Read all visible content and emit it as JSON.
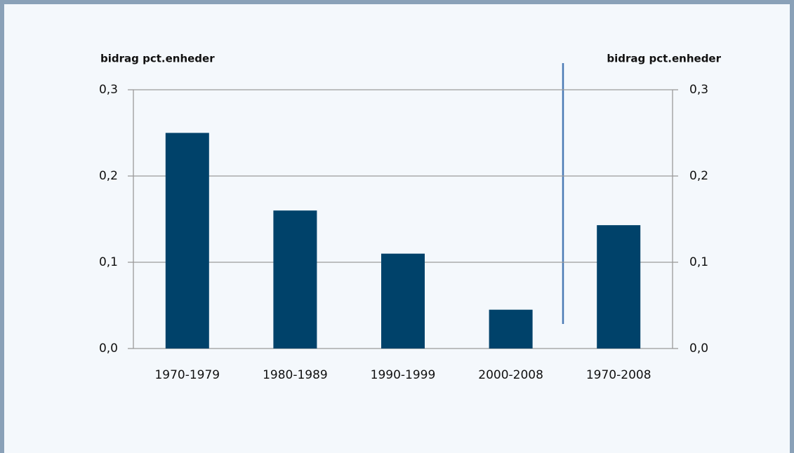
{
  "chart_data": {
    "type": "bar",
    "ylabel": "bidrag pct.enheder",
    "y2label": "bidrag pct.enheder",
    "categories": [
      "1970-1979",
      "1980-1989",
      "1990-1999",
      "2000-2008",
      "1970-2008"
    ],
    "values": [
      0.25,
      0.16,
      0.11,
      0.045,
      0.143
    ],
    "color": "#00426a",
    "ylim": [
      0,
      0.3
    ],
    "yticks": [
      {
        "value": 0,
        "label": "0,0"
      },
      {
        "value": 0.1,
        "label": "0,1"
      },
      {
        "value": 0.2,
        "label": "0,2"
      },
      {
        "value": 0.3,
        "label": "0,3"
      }
    ],
    "y2lim": [
      0,
      0.3
    ],
    "y2ticks": [
      {
        "value": 0,
        "label": "0,0"
      },
      {
        "value": 0.1,
        "label": "0,1"
      },
      {
        "value": 0.2,
        "label": "0,2"
      },
      {
        "value": 0.3,
        "label": "0,3"
      }
    ],
    "grid": true
  }
}
